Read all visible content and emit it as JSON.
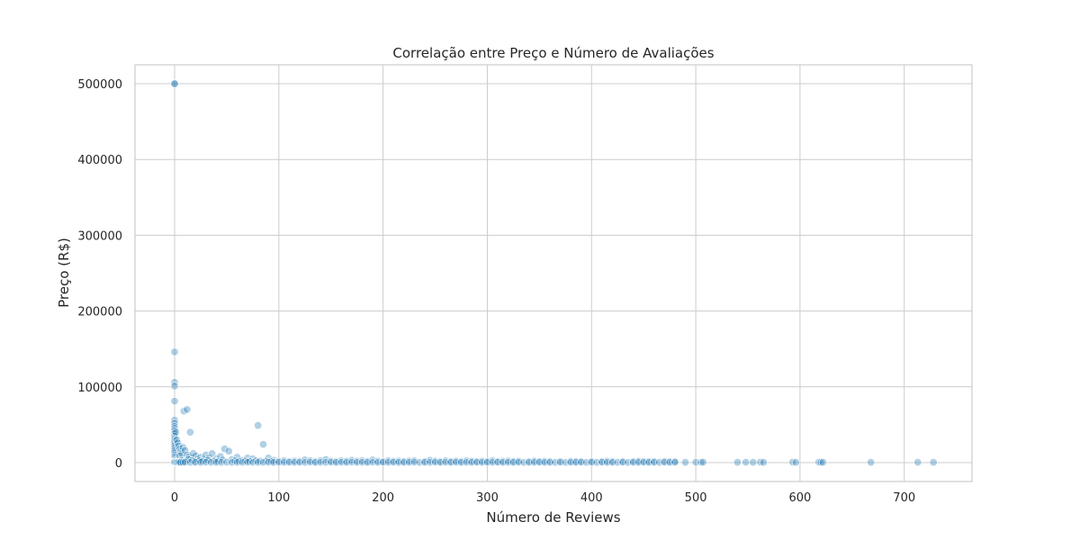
{
  "chart_data": {
    "type": "scatter",
    "title": "Correlação entre Preço e Número de Avaliações",
    "xlabel": "Número de Reviews",
    "ylabel": "Preço (R$)",
    "xlim": [
      -38,
      765
    ],
    "ylim": [
      -25000,
      525000
    ],
    "x_ticks": [
      0,
      100,
      200,
      300,
      400,
      500,
      600,
      700
    ],
    "y_ticks": [
      0,
      100000,
      200000,
      300000,
      400000,
      500000
    ],
    "grid": true,
    "legend": "none",
    "color": "#1f77b4",
    "point_opacity": 0.35,
    "series": [
      {
        "points": [
          [
            0,
            500000
          ],
          [
            0,
            500000
          ],
          [
            0,
            146000
          ],
          [
            0,
            106000
          ],
          [
            0,
            101000
          ],
          [
            0,
            81000
          ],
          [
            0,
            56000
          ],
          [
            0,
            52000
          ],
          [
            0,
            48000
          ],
          [
            0,
            45000
          ],
          [
            0,
            42000
          ],
          [
            0,
            38000
          ],
          [
            0,
            35000
          ],
          [
            0,
            31000
          ],
          [
            0,
            28000
          ],
          [
            0,
            25000
          ],
          [
            0,
            22000
          ],
          [
            0,
            19000
          ],
          [
            0,
            16000
          ],
          [
            0,
            13000
          ],
          [
            0,
            10000
          ],
          [
            0,
            8000
          ],
          [
            0,
            6000
          ],
          [
            0,
            4000
          ],
          [
            0,
            2500
          ],
          [
            0,
            1500
          ],
          [
            0,
            800
          ],
          [
            0,
            300
          ],
          [
            1,
            40000
          ],
          [
            2,
            30000
          ],
          [
            3,
            26000
          ],
          [
            4,
            22000
          ],
          [
            5,
            18000
          ],
          [
            6,
            15000
          ],
          [
            7,
            12000
          ],
          [
            8,
            20000
          ],
          [
            9,
            68000
          ],
          [
            12,
            70000
          ],
          [
            15,
            40000
          ],
          [
            10,
            16000
          ],
          [
            12,
            10000
          ],
          [
            14,
            8000
          ],
          [
            16,
            6000
          ],
          [
            18,
            12000
          ],
          [
            20,
            9000
          ],
          [
            22,
            5000
          ],
          [
            25,
            7000
          ],
          [
            28,
            4000
          ],
          [
            30,
            10000
          ],
          [
            33,
            6000
          ],
          [
            36,
            12000
          ],
          [
            40,
            5000
          ],
          [
            44,
            8000
          ],
          [
            48,
            18000
          ],
          [
            52,
            15000
          ],
          [
            55,
            4000
          ],
          [
            60,
            7000
          ],
          [
            65,
            3000
          ],
          [
            70,
            6000
          ],
          [
            75,
            5000
          ],
          [
            80,
            49000
          ],
          [
            85,
            24000
          ],
          [
            90,
            6000
          ],
          [
            95,
            3000
          ],
          [
            5,
            9000
          ],
          [
            7,
            3000
          ],
          [
            11,
            2000
          ],
          [
            13,
            4000
          ],
          [
            17,
            3000
          ],
          [
            19,
            1500
          ],
          [
            24,
            2500
          ],
          [
            27,
            1800
          ],
          [
            32,
            3000
          ],
          [
            38,
            2000
          ],
          [
            42,
            1500
          ],
          [
            46,
            3500
          ],
          [
            58,
            2500
          ],
          [
            62,
            1800
          ],
          [
            68,
            2200
          ],
          [
            72,
            1600
          ],
          [
            78,
            2500
          ],
          [
            82,
            1800
          ],
          [
            88,
            2000
          ],
          [
            93,
            1500
          ],
          [
            100,
            1800
          ],
          [
            105,
            2500
          ],
          [
            110,
            1500
          ],
          [
            115,
            2200
          ],
          [
            120,
            1800
          ],
          [
            125,
            3500
          ],
          [
            130,
            2500
          ],
          [
            135,
            1500
          ],
          [
            140,
            2500
          ],
          [
            145,
            4000
          ],
          [
            150,
            2000
          ],
          [
            155,
            1500
          ],
          [
            160,
            2500
          ],
          [
            165,
            1800
          ],
          [
            170,
            3000
          ],
          [
            175,
            2000
          ],
          [
            180,
            2500
          ],
          [
            185,
            1500
          ],
          [
            190,
            3500
          ],
          [
            195,
            2000
          ],
          [
            200,
            1500
          ],
          [
            205,
            2500
          ],
          [
            210,
            1800
          ],
          [
            215,
            2200
          ],
          [
            220,
            1500
          ],
          [
            225,
            2000
          ],
          [
            230,
            2500
          ],
          [
            240,
            1500
          ],
          [
            245,
            3000
          ],
          [
            250,
            2000
          ],
          [
            255,
            1500
          ],
          [
            260,
            2500
          ],
          [
            265,
            1500
          ],
          [
            270,
            2000
          ],
          [
            275,
            1500
          ],
          [
            280,
            2500
          ],
          [
            285,
            1800
          ],
          [
            290,
            1500
          ],
          [
            295,
            2000
          ],
          [
            300,
            1500
          ],
          [
            305,
            2500
          ],
          [
            310,
            1500
          ],
          [
            315,
            1800
          ],
          [
            320,
            2200
          ],
          [
            325,
            1500
          ],
          [
            330,
            1800
          ],
          [
            340,
            1500
          ],
          [
            345,
            2000
          ],
          [
            350,
            1500
          ],
          [
            355,
            1800
          ],
          [
            360,
            1500
          ],
          [
            370,
            1500
          ],
          [
            380,
            1800
          ],
          [
            385,
            1500
          ],
          [
            390,
            1500
          ],
          [
            400,
            1500
          ],
          [
            410,
            1500
          ],
          [
            415,
            1800
          ],
          [
            420,
            1500
          ],
          [
            430,
            1500
          ],
          [
            440,
            1500
          ],
          [
            445,
            1800
          ],
          [
            450,
            1500
          ],
          [
            455,
            1500
          ],
          [
            460,
            1500
          ],
          [
            470,
            1500
          ],
          [
            475,
            1500
          ],
          [
            480,
            1500
          ],
          [
            1,
            500
          ],
          [
            2,
            400
          ],
          [
            3,
            300
          ],
          [
            4,
            500
          ],
          [
            5,
            200
          ],
          [
            6,
            400
          ],
          [
            8,
            300
          ],
          [
            10,
            500
          ],
          [
            15,
            200
          ],
          [
            20,
            400
          ],
          [
            25,
            300
          ],
          [
            30,
            500
          ],
          [
            35,
            200
          ],
          [
            40,
            400
          ],
          [
            45,
            300
          ],
          [
            50,
            500
          ],
          [
            55,
            200
          ],
          [
            60,
            400
          ],
          [
            65,
            300
          ],
          [
            70,
            500
          ],
          [
            75,
            200
          ],
          [
            80,
            400
          ],
          [
            85,
            300
          ],
          [
            90,
            500
          ],
          [
            95,
            200
          ],
          [
            100,
            400
          ],
          [
            105,
            300
          ],
          [
            110,
            500
          ],
          [
            115,
            200
          ],
          [
            120,
            400
          ],
          [
            125,
            300
          ],
          [
            130,
            500
          ],
          [
            135,
            200
          ],
          [
            140,
            400
          ],
          [
            145,
            300
          ],
          [
            150,
            500
          ],
          [
            155,
            200
          ],
          [
            160,
            400
          ],
          [
            165,
            300
          ],
          [
            170,
            500
          ],
          [
            175,
            200
          ],
          [
            180,
            400
          ],
          [
            185,
            300
          ],
          [
            190,
            500
          ],
          [
            195,
            200
          ],
          [
            200,
            400
          ],
          [
            205,
            300
          ],
          [
            210,
            500
          ],
          [
            215,
            200
          ],
          [
            220,
            400
          ],
          [
            225,
            300
          ],
          [
            230,
            500
          ],
          [
            235,
            200
          ],
          [
            240,
            400
          ],
          [
            245,
            300
          ],
          [
            250,
            500
          ],
          [
            255,
            200
          ],
          [
            260,
            400
          ],
          [
            265,
            300
          ],
          [
            270,
            500
          ],
          [
            275,
            200
          ],
          [
            280,
            400
          ],
          [
            285,
            300
          ],
          [
            290,
            500
          ],
          [
            295,
            200
          ],
          [
            300,
            400
          ],
          [
            305,
            300
          ],
          [
            310,
            500
          ],
          [
            315,
            200
          ],
          [
            320,
            400
          ],
          [
            325,
            300
          ],
          [
            330,
            500
          ],
          [
            335,
            200
          ],
          [
            340,
            400
          ],
          [
            345,
            300
          ],
          [
            350,
            500
          ],
          [
            355,
            200
          ],
          [
            360,
            400
          ],
          [
            365,
            300
          ],
          [
            370,
            500
          ],
          [
            375,
            200
          ],
          [
            380,
            400
          ],
          [
            385,
            300
          ],
          [
            390,
            500
          ],
          [
            395,
            200
          ],
          [
            400,
            400
          ],
          [
            405,
            300
          ],
          [
            410,
            500
          ],
          [
            415,
            200
          ],
          [
            420,
            400
          ],
          [
            425,
            300
          ],
          [
            430,
            500
          ],
          [
            435,
            200
          ],
          [
            440,
            400
          ],
          [
            445,
            300
          ],
          [
            450,
            500
          ],
          [
            455,
            200
          ],
          [
            460,
            400
          ],
          [
            465,
            300
          ],
          [
            470,
            500
          ],
          [
            475,
            200
          ],
          [
            480,
            400
          ],
          [
            490,
            300
          ],
          [
            500,
            400
          ],
          [
            505,
            300
          ],
          [
            507,
            500
          ],
          [
            540,
            300
          ],
          [
            548,
            400
          ],
          [
            555,
            300
          ],
          [
            562,
            500
          ],
          [
            565,
            300
          ],
          [
            593,
            500
          ],
          [
            596,
            300
          ],
          [
            618,
            500
          ],
          [
            620,
            300
          ],
          [
            622,
            400
          ],
          [
            668,
            300
          ],
          [
            713,
            400
          ],
          [
            728,
            300
          ]
        ]
      }
    ]
  }
}
